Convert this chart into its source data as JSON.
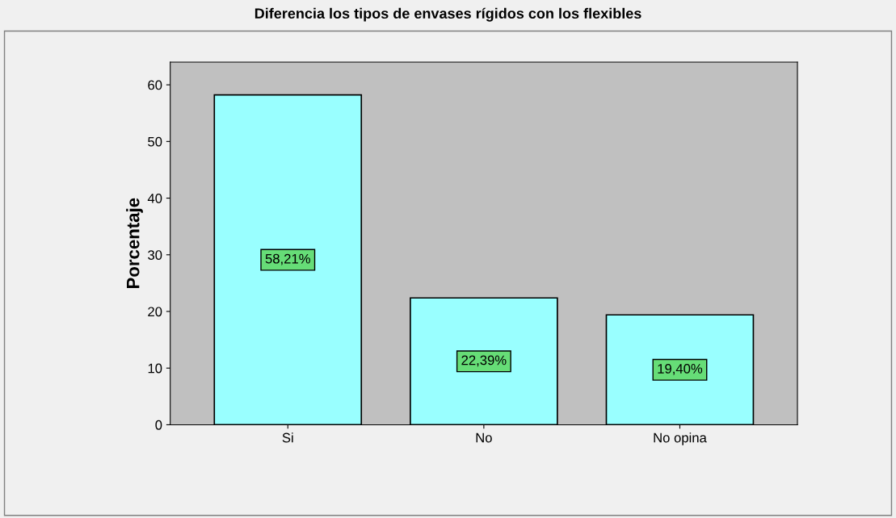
{
  "chart_data": {
    "type": "bar",
    "title": "Diferencia los tipos de envases rígidos con los flexibles",
    "ylabel": "Porcentaje",
    "categories": [
      "Si",
      "No",
      "No opina"
    ],
    "values": [
      58.21,
      22.39,
      19.4
    ],
    "value_labels": [
      "58,21%",
      "22,39%",
      "19,40%"
    ],
    "color": "#99ffff",
    "ylim": [
      0,
      64
    ],
    "yticks": [
      0,
      10,
      20,
      30,
      40,
      50,
      60
    ],
    "grid": false
  }
}
